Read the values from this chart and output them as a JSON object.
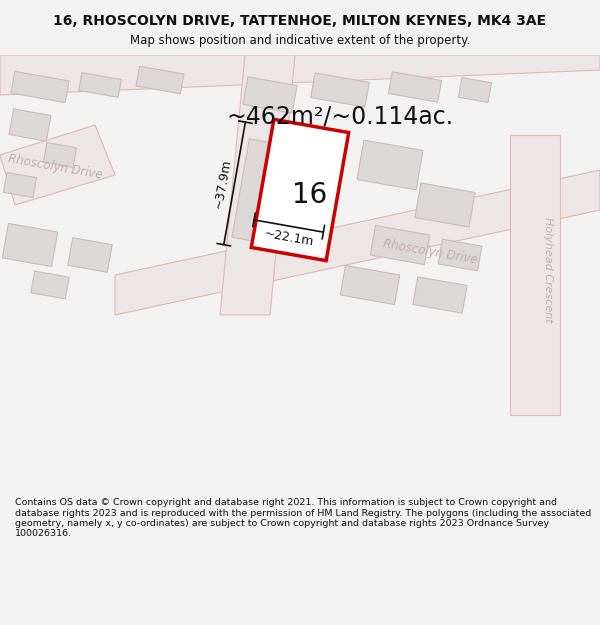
{
  "title_line1": "16, RHOSCOLYN DRIVE, TATTENHOE, MILTON KEYNES, MK4 3AE",
  "title_line2": "Map shows position and indicative extent of the property.",
  "area_text": "~462m²/~0.114ac.",
  "dim_width": "~22.1m",
  "dim_height": "~37.9m",
  "plot_label": "16",
  "street_label_left": "Rhoscolyn Drive",
  "street_label_bottom": "Rhoscolyn Drive",
  "street_label_right": "Holyhead Crescent",
  "footer_text": "Contains OS data © Crown copyright and database right 2021. This information is subject to Crown copyright and database rights 2023 and is reproduced with the permission of HM Land Registry. The polygons (including the associated geometry, namely x, y co-ordinates) are subject to Crown copyright and database rights 2023 Ordnance Survey 100026316.",
  "bg_color": "#f2f2f2",
  "map_bg": "#f0eeec",
  "road_line_color": "#e8b4b4",
  "building_fill": "#ddd8d8",
  "building_stroke": "#ccbbbb",
  "plot_stroke": "#cc0000",
  "plot_fill": "#ffffff",
  "dim_color": "#111111",
  "text_color": "#111111",
  "street_color": "#c0b0b0",
  "header_bg": "#f2f2f2",
  "footer_bg": "#f2f2f2"
}
